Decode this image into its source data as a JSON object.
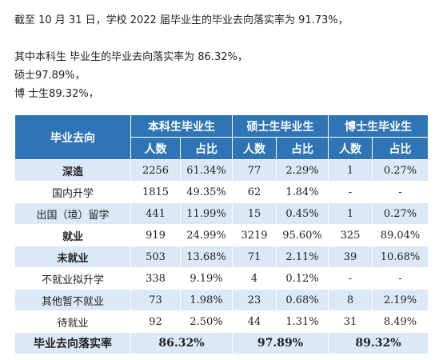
{
  "paragraphs": [
    "截至 10 月 31 日，学校 2022 届毕业生的毕业去向落实率为 91.73%，",
    "其中本科生 毕业生的毕业去向落实率为 86.32%，",
    "硕士97.89%，",
    "博 士生89.32%，"
  ],
  "table": {
    "corner": "毕业去向",
    "groups": [
      "本科生毕业生",
      "硕士生毕业生",
      "博士生毕业生"
    ],
    "subheaders": [
      "人数",
      "占比",
      "人数",
      "占比",
      "人数",
      "占比"
    ],
    "rows": [
      [
        "深造",
        "2256",
        "61.34%",
        "77",
        "2.29%",
        "1",
        "0.27%"
      ],
      [
        "国内升学",
        "1815",
        "49.35%",
        "62",
        "1.84%",
        "-",
        "-"
      ],
      [
        "出国（境）留学",
        "441",
        "11.99%",
        "15",
        "0.45%",
        "1",
        "0.27%"
      ],
      [
        "就业",
        "919",
        "24.99%",
        "3219",
        "95.60%",
        "325",
        "89.04%"
      ],
      [
        "未就业",
        "503",
        "13.68%",
        "71",
        "2.11%",
        "39",
        "10.68%"
      ],
      [
        "不就业拟升学",
        "338",
        "9.19%",
        "4",
        "0.12%",
        "-",
        "-"
      ],
      [
        "其他暂不就业",
        "73",
        "1.98%",
        "23",
        "0.68%",
        "8",
        "2.19%"
      ],
      [
        "待就业",
        "92",
        "2.50%",
        "44",
        "1.31%",
        "31",
        "8.49%"
      ]
    ],
    "footer": [
      "毕业去向落实率",
      "86.32%",
      "97.89%",
      "89.32%"
    ]
  }
}
